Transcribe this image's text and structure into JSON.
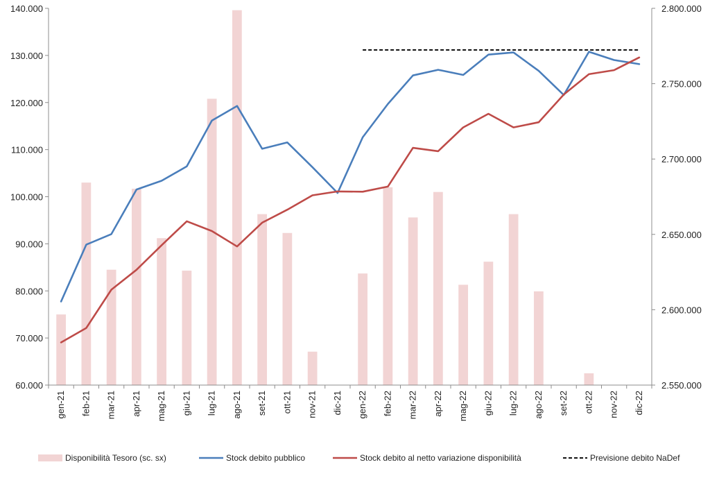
{
  "chart_data": {
    "type": "bar",
    "categories": [
      "gen-21",
      "feb-21",
      "mar-21",
      "apr-21",
      "mag-21",
      "giu-21",
      "lug-21",
      "ago-21",
      "set-21",
      "ott-21",
      "nov-21",
      "dic-21",
      "gen-22",
      "feb-22",
      "mar-22",
      "apr-22",
      "mag-22",
      "giu-22",
      "lug-22",
      "ago-22",
      "set-22",
      "ott-22",
      "nov-22",
      "dic-22"
    ],
    "left_axis": {
      "ylim": [
        60000,
        140000
      ],
      "ticks": [
        60000,
        70000,
        80000,
        90000,
        100000,
        110000,
        120000,
        130000,
        140000
      ],
      "tick_labels": [
        "60.000",
        "70.000",
        "80.000",
        "90.000",
        "100.000",
        "110.000",
        "120.000",
        "130.000",
        "140.000"
      ]
    },
    "right_axis": {
      "ylim": [
        2550000,
        2800000
      ],
      "ticks": [
        2550000,
        2600000,
        2650000,
        2700000,
        2750000,
        2800000
      ],
      "tick_labels": [
        "2.550.000",
        "2.600.000",
        "2.650.000",
        "2.700.000",
        "2.750.000",
        "2.800.000"
      ]
    },
    "series": [
      {
        "name": "Disponibilità Tesoro (sc. sx)",
        "kind": "bar",
        "axis": "left",
        "color": "#f2d4d4",
        "values": [
          75000,
          103000,
          84500,
          101700,
          91200,
          84300,
          120800,
          139600,
          96300,
          92300,
          67100,
          60000,
          83700,
          102000,
          95600,
          101000,
          81300,
          86200,
          96300,
          79900,
          60000,
          62500,
          60000,
          60000
        ]
      },
      {
        "name": "Stock debito pubblico",
        "kind": "line",
        "axis": "right",
        "color": "#4a7ebb",
        "values": [
          2605500,
          2643200,
          2650200,
          2679800,
          2685600,
          2695100,
          2725500,
          2735200,
          2706800,
          2711000,
          2694600,
          2677500,
          2714400,
          2736500,
          2755500,
          2759200,
          2755800,
          2769300,
          2770700,
          2758500,
          2742500,
          2771200,
          2765700,
          2763000
        ]
      },
      {
        "name": "Stock debito al netto variazione disponibilità",
        "kind": "line",
        "axis": "right",
        "color": "#be4b48",
        "values": [
          2578300,
          2587900,
          2613300,
          2626500,
          2642800,
          2658700,
          2652200,
          2642000,
          2657800,
          2666400,
          2675900,
          2678500,
          2678300,
          2681700,
          2707400,
          2705200,
          2721000,
          2730000,
          2721000,
          2724400,
          2742800,
          2756300,
          2759000,
          2767400
        ]
      },
      {
        "name": "Previsione debito NaDef",
        "kind": "dashed-line",
        "axis": "right",
        "color": "#111111",
        "x_range": [
          "gen-22",
          "dic-22"
        ],
        "value": 2772400
      }
    ],
    "legend": {
      "placement": "bottom",
      "items": [
        {
          "name": "Disponibilità Tesoro (sc. sx)",
          "swatch": "bar",
          "color": "#f2d4d4"
        },
        {
          "name": "Stock debito pubblico",
          "swatch": "line",
          "color": "#4a7ebb"
        },
        {
          "name": "Stock debito al netto variazione disponibilità",
          "swatch": "line",
          "color": "#be4b48"
        },
        {
          "name": "Previsione debito NaDef",
          "swatch": "dashed",
          "color": "#111111"
        }
      ]
    },
    "grid": false
  }
}
